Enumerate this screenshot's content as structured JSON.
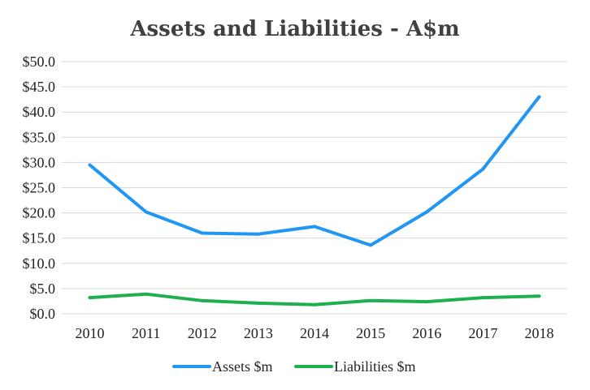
{
  "chart_data": {
    "type": "line",
    "title": "Assets and Liabilities - A$m",
    "xlabel": "",
    "ylabel": "",
    "categories": [
      "2010",
      "2011",
      "2012",
      "2013",
      "2014",
      "2015",
      "2016",
      "2017",
      "2018"
    ],
    "ylim": [
      0,
      50
    ],
    "y_ticks": [
      "$0.0",
      "$5.0",
      "$10.0",
      "$15.0",
      "$20.0",
      "$25.0",
      "$30.0",
      "$35.0",
      "$40.0",
      "$45.0",
      "$50.0"
    ],
    "grid": true,
    "legend_position": "bottom",
    "series": [
      {
        "name": "Assets $m",
        "color": "#2196F3",
        "values": [
          29.5,
          20.2,
          16.0,
          15.8,
          17.3,
          13.6,
          20.2,
          28.7,
          43.0
        ]
      },
      {
        "name": "Liabilities $m",
        "color": "#1EB04F",
        "values": [
          3.2,
          3.9,
          2.6,
          2.1,
          1.8,
          2.6,
          2.4,
          3.2,
          3.5
        ]
      }
    ]
  }
}
